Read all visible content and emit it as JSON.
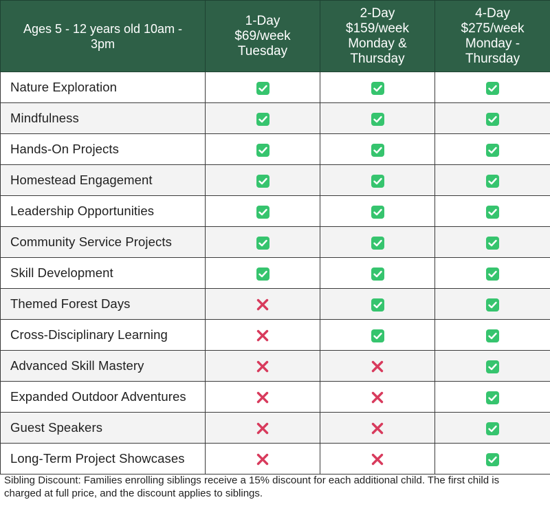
{
  "table": {
    "header": {
      "group_lines": [
        "Ages 5 - 12 years old 10am -",
        "3pm"
      ],
      "plans": [
        {
          "name": "1-Day",
          "price": "$69/week",
          "days_lines": [
            "Tuesday"
          ]
        },
        {
          "name": "2-Day",
          "price": "$159/week",
          "days_lines": [
            "Monday &",
            "Thursday"
          ]
        },
        {
          "name": "4-Day",
          "price": "$275/week",
          "days_lines": [
            "Monday -",
            "Thursday"
          ]
        }
      ]
    },
    "rows": [
      {
        "feature": "Nature Exploration",
        "included": [
          true,
          true,
          true
        ]
      },
      {
        "feature": "Mindfulness",
        "included": [
          true,
          true,
          true
        ]
      },
      {
        "feature": "Hands-On Projects",
        "included": [
          true,
          true,
          true
        ]
      },
      {
        "feature": "Homestead Engagement",
        "included": [
          true,
          true,
          true
        ]
      },
      {
        "feature": "Leadership Opportunities",
        "included": [
          true,
          true,
          true
        ]
      },
      {
        "feature": "Community Service Projects",
        "included": [
          true,
          true,
          true
        ]
      },
      {
        "feature": "Skill Development",
        "included": [
          true,
          true,
          true
        ]
      },
      {
        "feature": "Themed Forest Days",
        "included": [
          false,
          true,
          true
        ]
      },
      {
        "feature": "Cross-Disciplinary Learning",
        "included": [
          false,
          true,
          true
        ]
      },
      {
        "feature": "Advanced Skill Mastery",
        "included": [
          false,
          false,
          true
        ]
      },
      {
        "feature": "Expanded Outdoor Adventures",
        "included": [
          false,
          false,
          true
        ]
      },
      {
        "feature": "Guest Speakers",
        "included": [
          false,
          false,
          true
        ]
      },
      {
        "feature": "Long-Term Project Showcases",
        "included": [
          false,
          false,
          true
        ]
      }
    ]
  },
  "footnote": {
    "lines": [
      "Sibling Discount: Families enrolling siblings receive a 15% discount for each additional child. The first child is",
      "charged at full price, and the discount applies to siblings."
    ]
  },
  "icons": {
    "included": "check-icon",
    "excluded": "cross-icon"
  },
  "colors": {
    "header_bg": "#2e6047",
    "header_text": "#ffffff",
    "check_bg": "#36c46e",
    "cross": "#d83a5c",
    "row_alt_bg": "#f3f3f3"
  }
}
